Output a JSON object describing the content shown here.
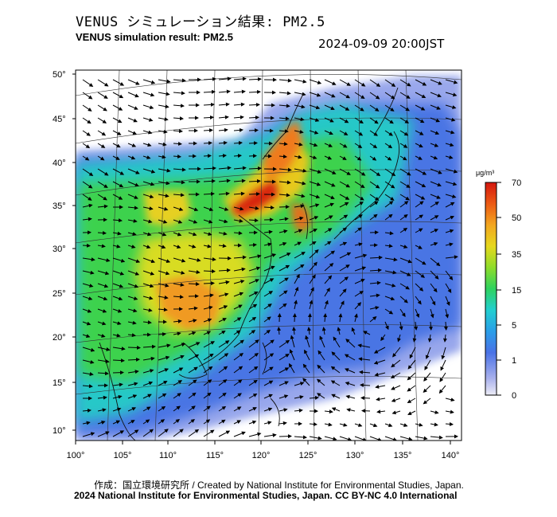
{
  "header": {
    "title_ja": "VENUS シミュレーション結果: PM2.5",
    "title_en": "VENUS simulation result: PM2.5",
    "timestamp": "2024-09-09 20:00JST"
  },
  "map": {
    "latitude_labels": [
      "50°",
      "45°",
      "40°",
      "35°",
      "30°",
      "25°",
      "20°",
      "15°",
      "10°"
    ],
    "longitude_labels": [
      "100°",
      "105°",
      "110°",
      "115°",
      "120°",
      "125°",
      "130°",
      "135°",
      "140°"
    ],
    "lat_range": [
      9,
      51
    ],
    "lon_range": [
      100,
      142
    ],
    "projection_pole": "Lambert-conic like (curved graticule)",
    "field": "PM2.5 concentration with wind vectors"
  },
  "colorbar": {
    "unit": "μg/m³",
    "tick_labels": [
      "70",
      "50",
      "35",
      "15",
      "5",
      "1",
      "0"
    ],
    "colors": [
      "#e8e8f4",
      "#8c9be6",
      "#3a6ee8",
      "#2aa8e8",
      "#22d4c8",
      "#3ad25a",
      "#9adc2a",
      "#e8d81e",
      "#f0a020",
      "#ec5a12",
      "#d81e10"
    ]
  },
  "footer": {
    "credit_line": "作成：国立環境研究所 / Created by National Institute for Environmental Studies, Japan.",
    "license_line": "2024 National Institute for Environmental Studies, Japan. CC BY-NC 4.0 International"
  }
}
